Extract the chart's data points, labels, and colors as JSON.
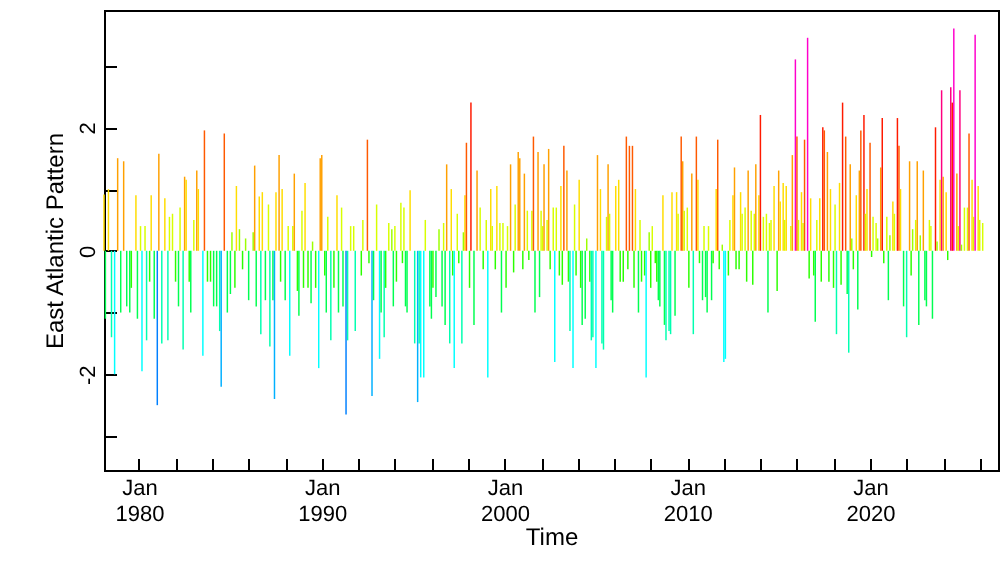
{
  "chart_data": {
    "type": "bar",
    "xlabel": "Time",
    "ylabel": "East Atlantic Pattern",
    "xlim": [
      "1978-02",
      "2027-01"
    ],
    "ylim": [
      -3.55,
      3.9
    ],
    "xticks": [
      {
        "value": "1980-01",
        "label": "Jan\n1980"
      },
      {
        "value": "1982-01",
        "label": null
      },
      {
        "value": "1984-01",
        "label": null
      },
      {
        "value": "1986-01",
        "label": null
      },
      {
        "value": "1988-01",
        "label": null
      },
      {
        "value": "1990-01",
        "label": "Jan\n1990"
      },
      {
        "value": "1992-01",
        "label": null
      },
      {
        "value": "1994-01",
        "label": null
      },
      {
        "value": "1996-01",
        "label": null
      },
      {
        "value": "1998-01",
        "label": null
      },
      {
        "value": "2000-01",
        "label": "Jan\n2000"
      },
      {
        "value": "2002-01",
        "label": null
      },
      {
        "value": "2004-01",
        "label": null
      },
      {
        "value": "2006-01",
        "label": null
      },
      {
        "value": "2008-01",
        "label": null
      },
      {
        "value": "2010-01",
        "label": "Jan\n2010"
      },
      {
        "value": "2012-01",
        "label": null
      },
      {
        "value": "2014-01",
        "label": null
      },
      {
        "value": "2016-01",
        "label": null
      },
      {
        "value": "2018-01",
        "label": null
      },
      {
        "value": "2020-01",
        "label": "Jan\n2020"
      },
      {
        "value": "2022-01",
        "label": null
      },
      {
        "value": "2024-01",
        "label": null
      },
      {
        "value": "2026-01",
        "label": null
      }
    ],
    "yticks": [
      {
        "value": -3,
        "label": null
      },
      -2,
      {
        "value": -1,
        "label": null
      },
      0,
      {
        "value": 1,
        "label": null
      },
      2,
      {
        "value": 3,
        "label": null
      }
    ],
    "x": [
      "1978-02",
      "1978-03",
      "1978-05",
      "1978-07",
      "1978-09",
      "1978-11",
      "1979-01",
      "1979-03",
      "1979-05",
      "1979-07",
      "1979-08",
      "1979-11",
      "1979-12",
      "1980-02",
      "1980-03",
      "1980-05",
      "1980-06",
      "1980-08",
      "1980-09",
      "1980-11",
      "1981-01",
      "1981-02",
      "1981-04",
      "1981-06",
      "1981-08",
      "1981-09",
      "1981-11",
      "1982-01",
      "1982-03",
      "1982-04",
      "1982-06",
      "1982-07",
      "1982-08",
      "1982-10",
      "1982-11",
      "1983-01",
      "1983-03",
      "1983-04",
      "1983-07",
      "1983-08",
      "1983-10",
      "1983-12",
      "1984-02",
      "1984-04",
      "1984-06",
      "1984-07",
      "1984-09",
      "1984-11",
      "1985-01",
      "1985-02",
      "1985-04",
      "1985-05",
      "1985-07",
      "1985-09",
      "1985-11",
      "1986-01",
      "1986-04",
      "1986-05",
      "1986-06",
      "1986-08",
      "1986-09",
      "1986-10",
      "1986-12",
      "1987-02",
      "1987-03",
      "1987-05",
      "1987-06",
      "1987-07",
      "1987-09",
      "1987-10",
      "1987-11",
      "1988-01",
      "1988-03",
      "1988-04",
      "1988-06",
      "1988-07",
      "1988-09",
      "1988-10",
      "1988-12",
      "1989-01",
      "1989-02",
      "1989-04",
      "1989-06",
      "1989-07",
      "1989-09",
      "1989-11",
      "1989-12",
      "1990-01",
      "1990-03",
      "1990-04",
      "1990-05",
      "1990-07",
      "1990-09",
      "1990-11",
      "1990-12",
      "1991-02",
      "1991-03",
      "1991-05",
      "1991-06",
      "1991-08",
      "1991-10",
      "1991-11",
      "1992-03",
      "1992-04",
      "1992-07",
      "1992-08",
      "1992-10",
      "1992-11",
      "1993-01",
      "1993-03",
      "1993-04",
      "1993-06",
      "1993-07",
      "1993-09",
      "1993-11",
      "1993-12",
      "1994-01",
      "1994-02",
      "1994-05",
      "1994-06",
      "1994-07",
      "1994-08",
      "1994-09",
      "1994-11",
      "1995-02",
      "1995-04",
      "1995-05",
      "1995-06",
      "1995-08",
      "1995-09",
      "1995-12",
      "1996-01",
      "1996-02",
      "1996-04",
      "1996-06",
      "1996-08",
      "1996-09",
      "1996-10",
      "1996-11",
      "1997-01",
      "1997-02",
      "1997-03",
      "1997-04",
      "1997-06",
      "1997-07",
      "1997-09",
      "1997-10",
      "1997-11",
      "1997-12",
      "1998-02",
      "1998-03",
      "1998-05",
      "1998-07",
      "1998-09",
      "1998-11",
      "1999-01",
      "1999-02",
      "1999-04",
      "1999-05",
      "1999-07",
      "1999-08",
      "1999-10",
      "1999-11",
      "1999-12",
      "2000-02",
      "2000-03",
      "2000-05",
      "2000-07",
      "2000-08",
      "2000-10",
      "2000-11",
      "2001-01",
      "2001-02",
      "2001-04",
      "2001-05",
      "2001-07",
      "2001-08",
      "2001-09",
      "2001-11",
      "2001-12",
      "2002-01",
      "2002-02",
      "2002-03",
      "2002-05",
      "2002-06",
      "2002-07",
      "2002-09",
      "2002-10",
      "2002-11",
      "2003-01",
      "2003-02",
      "2003-03",
      "2003-04",
      "2003-06",
      "2003-07",
      "2003-08",
      "2003-10",
      "2003-11",
      "2003-12",
      "2004-02",
      "2004-03",
      "2004-04",
      "2004-06",
      "2004-07",
      "2004-09",
      "2004-10",
      "2004-11",
      "2005-01",
      "2005-02",
      "2005-04",
      "2005-05",
      "2005-06",
      "2005-08",
      "2005-09",
      "2005-10",
      "2005-11",
      "2005-12",
      "2006-02",
      "2006-04",
      "2006-05",
      "2006-07",
      "2006-09",
      "2006-10",
      "2006-11",
      "2007-01",
      "2007-02",
      "2007-03",
      "2007-05",
      "2007-06",
      "2007-07",
      "2007-09",
      "2007-10",
      "2007-12",
      "2008-01",
      "2008-02",
      "2008-04",
      "2008-05",
      "2008-06",
      "2008-07",
      "2008-09",
      "2008-10",
      "2008-11",
      "2009-01",
      "2009-02",
      "2009-03",
      "2009-05",
      "2009-06",
      "2009-07",
      "2009-09",
      "2009-10",
      "2009-11",
      "2010-01",
      "2010-02",
      "2010-04",
      "2010-05",
      "2010-07",
      "2010-08",
      "2010-09",
      "2010-11",
      "2010-12",
      "2011-01",
      "2011-02",
      "2011-03",
      "2011-05",
      "2011-06",
      "2011-08",
      "2011-09",
      "2011-10",
      "2011-12",
      "2012-01",
      "2012-02",
      "2012-04",
      "2012-05",
      "2012-07",
      "2012-08",
      "2012-09",
      "2012-11",
      "2012-12",
      "2013-01",
      "2013-03",
      "2013-04",
      "2013-05",
      "2013-07",
      "2013-08",
      "2013-09",
      "2013-10",
      "2013-12",
      "2014-01",
      "2014-03",
      "2014-05",
      "2014-06",
      "2014-07",
      "2014-08",
      "2014-10",
      "2014-12",
      "2015-01",
      "2015-02",
      "2015-04",
      "2015-05",
      "2015-06",
      "2015-09",
      "2015-10",
      "2015-12",
      "2016-01",
      "2016-02",
      "2016-04",
      "2016-05",
      "2016-06",
      "2016-08",
      "2016-09",
      "2016-10",
      "2016-12",
      "2017-01",
      "2017-02",
      "2017-04",
      "2017-05",
      "2017-06",
      "2017-07",
      "2017-09",
      "2017-10",
      "2017-11",
      "2018-01",
      "2018-02",
      "2018-03",
      "2018-05",
      "2018-06",
      "2018-07",
      "2018-09",
      "2018-10",
      "2018-11",
      "2018-12",
      "2019-01",
      "2019-02",
      "2019-04",
      "2019-05",
      "2019-06",
      "2019-07",
      "2019-09",
      "2019-10",
      "2019-11",
      "2020-01",
      "2020-02",
      "2020-03",
      "2020-05",
      "2020-06",
      "2020-08",
      "2020-09",
      "2020-10",
      "2020-12",
      "2021-01",
      "2021-02",
      "2021-04",
      "2021-05",
      "2021-07",
      "2021-08",
      "2021-09",
      "2021-11",
      "2022-01",
      "2022-03",
      "2022-04",
      "2022-05",
      "2022-07",
      "2022-08",
      "2022-09",
      "2022-10",
      "2022-12",
      "2023-01",
      "2023-02",
      "2023-04",
      "2023-05",
      "2023-06",
      "2023-08",
      "2023-09",
      "2023-11",
      "2023-12",
      "2024-01",
      "2024-03",
      "2024-04",
      "2024-06",
      "2024-07",
      "2024-08",
      "2024-10",
      "2024-11",
      "2024-12",
      "2025-01",
      "2025-03",
      "2025-05",
      "2025-06",
      "2025-08",
      "2025-09",
      "2025-10",
      "2025-12",
      "2026-01",
      "2026-03"
    ],
    "values": [
      0.91,
      -1.1,
      1.0,
      -1.4,
      -2.0,
      1.5,
      -1.0,
      1.45,
      -0.9,
      -1.0,
      -0.6,
      0.9,
      -1.1,
      0.4,
      -1.95,
      0.4,
      -1.45,
      -0.5,
      0.9,
      -1.1,
      -2.5,
      1.57,
      -1.5,
      0.85,
      -1.45,
      0.55,
      0.6,
      -0.5,
      -0.9,
      0.7,
      -1.6,
      1.2,
      1.15,
      -0.5,
      -1.0,
      0.5,
      1.3,
      1.0,
      -1.7,
      1.95,
      -0.5,
      -0.5,
      -0.9,
      -0.9,
      -1.3,
      -2.2,
      1.9,
      -1.0,
      -0.7,
      0.3,
      -0.6,
      1.05,
      0.35,
      -0.3,
      0.2,
      -0.8,
      0.3,
      1.38,
      -0.9,
      0.88,
      -1.35,
      0.95,
      -0.8,
      0.75,
      -1.55,
      -0.8,
      -2.4,
      0.95,
      1.55,
      -0.5,
      1.0,
      -0.8,
      0.4,
      -1.7,
      0.4,
      1.25,
      -0.65,
      -1.05,
      0.65,
      -0.6,
      1.1,
      -0.6,
      -0.85,
      0.15,
      -0.6,
      -1.9,
      1.5,
      1.55,
      -0.4,
      -1.0,
      0.55,
      -1.45,
      -0.6,
      0.9,
      -1.0,
      0.7,
      -0.9,
      -2.65,
      -1.45,
      0.4,
      0.4,
      -1.3,
      -0.4,
      0.5,
      1.8,
      -0.2,
      -2.35,
      -0.8,
      0.75,
      -1.75,
      -1.0,
      -1.4,
      -0.6,
      0.45,
      0.35,
      -0.9,
      0.4,
      -0.5,
      0.78,
      -0.2,
      0.7,
      -0.9,
      -1.0,
      0.98,
      -1.5,
      -2.45,
      -1.5,
      -2.05,
      -2.05,
      0.5,
      -0.9,
      -1.1,
      -0.6,
      -0.75,
      0.35,
      -0.9,
      0.45,
      -1.2,
      1.4,
      -1.5,
      1.0,
      -0.4,
      -1.9,
      0.6,
      -0.2,
      -1.5,
      0.3,
      0.9,
      1.75,
      -0.6,
      2.4,
      -1.2,
      1.3,
      0.7,
      -0.3,
      0.5,
      -2.05,
      1.0,
      0.4,
      -0.3,
      1.05,
      0.45,
      -1.0,
      0.45,
      -0.6,
      0.4,
      1.4,
      -0.35,
      0.75,
      1.6,
      1.5,
      -0.3,
      1.25,
      0.65,
      -0.15,
      0.65,
      1.85,
      -1.0,
      1.6,
      -0.75,
      0.65,
      0.4,
      1.4,
      0.5,
      1.65,
      -0.3,
      0.7,
      -1.8,
      0.7,
      -0.4,
      1.05,
      -0.55,
      1.7,
      1.3,
      -0.5,
      -1.3,
      -1.9,
      0.75,
      -0.4,
      1.15,
      -0.6,
      -1.2,
      -1.1,
      0.2,
      -0.5,
      -1.45,
      -1.4,
      -1.9,
      1.55,
      1.0,
      -1.5,
      -1.6,
      0.55,
      1.4,
      0.6,
      -0.8,
      -1.0,
      1.05,
      1.15,
      -0.5,
      -0.5,
      1.85,
      -0.3,
      1.7,
      1.7,
      -0.6,
      1.0,
      -1.0,
      0.5,
      -0.5,
      -0.4,
      -2.05,
      0.3,
      -0.6,
      0.4,
      -0.2,
      -0.5,
      -0.8,
      -0.9,
      0.9,
      -1.2,
      -1.45,
      -1.3,
      -1.35,
      0.95,
      -1.05,
      0.95,
      0.6,
      1.85,
      1.45,
      0.65,
      0.7,
      -0.6,
      1.25,
      -1.35,
      1.85,
      1.15,
      -0.2,
      -0.8,
      0.4,
      -0.75,
      -1.0,
      0.4,
      -0.8,
      -0.2,
      1.0,
      1.8,
      -0.3,
      0.1,
      -1.8,
      -1.75,
      -0.4,
      0.5,
      0.9,
      1.35,
      -0.3,
      -0.3,
      0.95,
      0.6,
      0.7,
      -0.5,
      1.3,
      0.65,
      -0.55,
      0.6,
      1.4,
      0.9,
      2.2,
      0.55,
      0.6,
      -1.0,
      0.45,
      0.5,
      1.05,
      -0.65,
      1.3,
      0.8,
      1.1,
      0.5,
      1.05,
      0.4,
      1.55,
      3.1,
      1.85,
      0.5,
      0.95,
      0.45,
      1.8,
      3.45,
      -0.45,
      0.85,
      -0.4,
      -1.15,
      0.5,
      0.85,
      -0.5,
      2.0,
      1.95,
      1.6,
      -0.5,
      1.0,
      -0.6,
      0.75,
      -1.35,
      1.1,
      -0.55,
      2.4,
      1.85,
      -0.7,
      -1.65,
      1.4,
      0.2,
      -0.3,
      0.9,
      -0.95,
      1.3,
      1.95,
      2.2,
      0.6,
      1.0,
      1.75,
      -0.1,
      0.55,
      0.45,
      0.2,
      1.35,
      2.15,
      -0.2,
      0.55,
      -0.8,
      0.25,
      0.8,
      0.6,
      2.15,
      1.7,
      1.0,
      -0.9,
      -1.4,
      1.45,
      -0.4,
      0.35,
      0.5,
      1.45,
      -1.2,
      0.25,
      1.3,
      -0.8,
      -0.9,
      0.5,
      0.4,
      -1.1,
      2.0,
      0.15,
      1.15,
      2.6,
      1.2,
      0.95,
      -0.15,
      2.65,
      2.4,
      3.6,
      1.25,
      0.4,
      2.6,
      0.1,
      0.7,
      0.7,
      1.9,
      1.15,
      0.55,
      3.5,
      1.05,
      0.5,
      0.45
    ],
    "colors": [
      "#ffdd00",
      "#00ff50",
      "#ffdd00",
      "#00ffb0",
      "#00ffff",
      "#ffa000",
      "#00ff50",
      "#ffa000",
      "#00ff50",
      "#00ff50",
      "#2bff00",
      "#ffdd00",
      "#00ff50",
      "#d8ff00",
      "#00ffff",
      "#d8ff00",
      "#00ffb0",
      "#2bff00",
      "#ffdd00",
      "#00ff50",
      "#0080ff",
      "#ffa000",
      "#00ffb0",
      "#ffdd00",
      "#00ffb0",
      "#d8ff00",
      "#d8ff00",
      "#2bff00",
      "#00ff50",
      "#d8ff00",
      "#00ffb0",
      "#ffa000",
      "#ffdd00",
      "#2bff00",
      "#00ff50",
      "#d8ff00",
      "#ffa000",
      "#ffdd00",
      "#00ffff",
      "#ff5a00",
      "#2bff00",
      "#2bff00",
      "#00ff50",
      "#00ff50",
      "#00ffb0",
      "#00b0ff",
      "#ff5a00",
      "#00ff50",
      "#00ff50",
      "#9cff00",
      "#2bff00",
      "#ffdd00",
      "#9cff00",
      "#2bff00",
      "#9cff00",
      "#00ff50",
      "#9cff00",
      "#ffa000",
      "#00ff50",
      "#ffdd00",
      "#00ffb0",
      "#ffdd00",
      "#00ff50",
      "#d8ff00",
      "#00ffb0",
      "#00ff50",
      "#00b0ff",
      "#ffdd00",
      "#ffa000",
      "#2bff00",
      "#ffdd00",
      "#00ff50",
      "#d8ff00",
      "#00ffff",
      "#d8ff00",
      "#ffa000",
      "#2bff00",
      "#00ff50",
      "#d8ff00",
      "#2bff00",
      "#ffdd00",
      "#2bff00",
      "#00ff50",
      "#9cff00",
      "#2bff00",
      "#00ffff",
      "#ffa000",
      "#ffa000",
      "#2bff00",
      "#00ff50",
      "#d8ff00",
      "#00ffb0",
      "#2bff00",
      "#ffdd00",
      "#00ff50",
      "#d8ff00",
      "#00ff50",
      "#0080ff",
      "#00ffb0",
      "#d8ff00",
      "#d8ff00",
      "#00ffb0",
      "#2bff00",
      "#d8ff00",
      "#ff5a00",
      "#2bff00",
      "#00b0ff",
      "#00ff50",
      "#d8ff00",
      "#00ffff",
      "#00ff50",
      "#00ffb0",
      "#2bff00",
      "#d8ff00",
      "#9cff00",
      "#00ff50",
      "#d8ff00",
      "#2bff00",
      "#d8ff00",
      "#2bff00",
      "#d8ff00",
      "#00ff50",
      "#00ff50",
      "#ffdd00",
      "#00ffb0",
      "#00b0ff",
      "#00ffb0",
      "#00ffff",
      "#00ffff",
      "#d8ff00",
      "#00ff50",
      "#00ff50",
      "#2bff00",
      "#00ff50",
      "#9cff00",
      "#00ff50",
      "#d8ff00",
      "#00ff50",
      "#ffa000",
      "#00ffb0",
      "#ffdd00",
      "#2bff00",
      "#00ffff",
      "#d8ff00",
      "#2bff00",
      "#00ffb0",
      "#9cff00",
      "#ffdd00",
      "#ff5a00",
      "#2bff00",
      "#ff1a00",
      "#00ff50",
      "#ffa000",
      "#d8ff00",
      "#2bff00",
      "#d8ff00",
      "#00ffff",
      "#ffdd00",
      "#d8ff00",
      "#2bff00",
      "#ffdd00",
      "#d8ff00",
      "#00ff50",
      "#d8ff00",
      "#2bff00",
      "#d8ff00",
      "#ffa000",
      "#2bff00",
      "#d8ff00",
      "#ffa000",
      "#ffa000",
      "#2bff00",
      "#ffa000",
      "#d8ff00",
      "#2bff00",
      "#d8ff00",
      "#ff5a00",
      "#00ff50",
      "#ffa000",
      "#00ff50",
      "#d8ff00",
      "#d8ff00",
      "#ffa000",
      "#d8ff00",
      "#ffa000",
      "#2bff00",
      "#d8ff00",
      "#00ffff",
      "#d8ff00",
      "#2bff00",
      "#ffdd00",
      "#2bff00",
      "#ff5a00",
      "#ffa000",
      "#2bff00",
      "#00ffb0",
      "#00ffff",
      "#d8ff00",
      "#2bff00",
      "#ffdd00",
      "#2bff00",
      "#00ff50",
      "#00ff50",
      "#9cff00",
      "#2bff00",
      "#00ffb0",
      "#00ffb0",
      "#00ffff",
      "#ffa000",
      "#ffdd00",
      "#00ffb0",
      "#00ffb0",
      "#d8ff00",
      "#ffa000",
      "#d8ff00",
      "#00ff50",
      "#00ff50",
      "#ffdd00",
      "#ffdd00",
      "#2bff00",
      "#2bff00",
      "#ff5a00",
      "#2bff00",
      "#ff5a00",
      "#ff5a00",
      "#2bff00",
      "#ffdd00",
      "#00ff50",
      "#d8ff00",
      "#2bff00",
      "#2bff00",
      "#00ffff",
      "#9cff00",
      "#2bff00",
      "#d8ff00",
      "#2bff00",
      "#2bff00",
      "#00ff50",
      "#00ff50",
      "#ffdd00",
      "#00ff50",
      "#00ffb0",
      "#00ffb0",
      "#00ffb0",
      "#ffdd00",
      "#00ff50",
      "#ffdd00",
      "#d8ff00",
      "#ff5a00",
      "#ffa000",
      "#d8ff00",
      "#d8ff00",
      "#2bff00",
      "#ffa000",
      "#00ffb0",
      "#ff5a00",
      "#ffdd00",
      "#2bff00",
      "#00ff50",
      "#d8ff00",
      "#00ff50",
      "#00ff50",
      "#d8ff00",
      "#00ff50",
      "#2bff00",
      "#ffdd00",
      "#ff5a00",
      "#2bff00",
      "#9cff00",
      "#00ffff",
      "#00ffff",
      "#2bff00",
      "#d8ff00",
      "#ffdd00",
      "#ffa000",
      "#2bff00",
      "#2bff00",
      "#ffdd00",
      "#d8ff00",
      "#d8ff00",
      "#2bff00",
      "#ffa000",
      "#d8ff00",
      "#2bff00",
      "#d8ff00",
      "#ffa000",
      "#ffdd00",
      "#ff1a00",
      "#d8ff00",
      "#d8ff00",
      "#00ff50",
      "#d8ff00",
      "#d8ff00",
      "#ffdd00",
      "#2bff00",
      "#ffa000",
      "#ffdd00",
      "#ffdd00",
      "#d8ff00",
      "#ffdd00",
      "#d8ff00",
      "#ffa000",
      "#ff00cc",
      "#ff5a00",
      "#d8ff00",
      "#ffdd00",
      "#d8ff00",
      "#ff5a00",
      "#ff00cc",
      "#2bff00",
      "#ffdd00",
      "#2bff00",
      "#00ff50",
      "#d8ff00",
      "#ffdd00",
      "#2bff00",
      "#ff1a00",
      "#ff5a00",
      "#ffa000",
      "#2bff00",
      "#ffdd00",
      "#2bff00",
      "#d8ff00",
      "#00ffb0",
      "#ffdd00",
      "#2bff00",
      "#ff1a00",
      "#ff5a00",
      "#00ff50",
      "#00ffb0",
      "#ffa000",
      "#9cff00",
      "#2bff00",
      "#ffdd00",
      "#00ff50",
      "#ffa000",
      "#ff5a00",
      "#ff1a00",
      "#d8ff00",
      "#ffdd00",
      "#ff5a00",
      "#2bff00",
      "#d8ff00",
      "#d8ff00",
      "#9cff00",
      "#ffa000",
      "#ff1a00",
      "#2bff00",
      "#d8ff00",
      "#00ff50",
      "#9cff00",
      "#ffdd00",
      "#d8ff00",
      "#ff1a00",
      "#ff5a00",
      "#ffdd00",
      "#00ff50",
      "#00ffb0",
      "#ffa000",
      "#2bff00",
      "#9cff00",
      "#d8ff00",
      "#ffa000",
      "#00ff50",
      "#9cff00",
      "#ffa000",
      "#00ff50",
      "#00ff50",
      "#d8ff00",
      "#d8ff00",
      "#00ff50",
      "#ff1a00",
      "#9cff00",
      "#ffdd00",
      "#ff0080",
      "#ffa000",
      "#ffdd00",
      "#2bff00",
      "#ff0080",
      "#ff1a00",
      "#ff00cc",
      "#ffa000",
      "#d8ff00",
      "#ff0080",
      "#9cff00",
      "#d8ff00",
      "#d8ff00",
      "#ff5a00",
      "#ffdd00",
      "#d8ff00",
      "#ff00cc",
      "#ffdd00",
      "#d8ff00",
      "#d8ff00"
    ]
  }
}
